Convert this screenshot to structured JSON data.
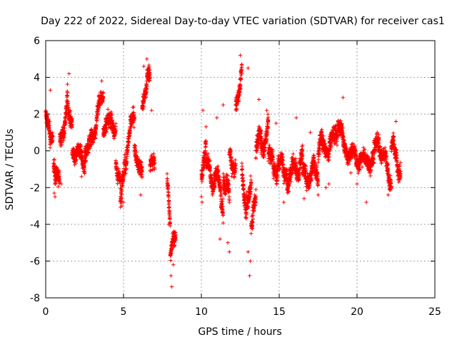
{
  "chart_data": {
    "type": "scatter",
    "title": "Day 222 of 2022, Sidereal Day-to-day VTEC variation (SDTVAR) for receiver cas1",
    "xlabel": "GPS time / hours",
    "ylabel": "SDTVAR / TECUs",
    "xlim": [
      0,
      25
    ],
    "ylim": [
      -8,
      6
    ],
    "xticks": [
      "0",
      "5",
      "10",
      "15",
      "20",
      "25"
    ],
    "yticks": [
      "-8",
      "-6",
      "-4",
      "-2",
      "0",
      "2",
      "4",
      "6"
    ],
    "grid": true,
    "marker": "+",
    "color": "#ff0000",
    "series": [
      {
        "name": "SDTVAR",
        "segments": [
          {
            "t0": 0.0,
            "t1": 0.45,
            "c0": 1.5,
            "c1": 1.0,
            "amp": 0.9
          },
          {
            "t0": 0.5,
            "t1": 0.9,
            "c0": -0.5,
            "c1": -2.0,
            "amp": 0.8
          },
          {
            "t0": 0.9,
            "t1": 1.4,
            "c0": 0.5,
            "c1": 2.5,
            "amp": 1.0
          },
          {
            "t0": 1.4,
            "t1": 1.7,
            "c0": 3.0,
            "c1": 1.5,
            "amp": 1.0
          },
          {
            "t0": 1.7,
            "t1": 2.5,
            "c0": 0.0,
            "c1": -0.5,
            "amp": 0.8
          },
          {
            "t0": 2.5,
            "t1": 3.0,
            "c0": 0.0,
            "c1": 0.5,
            "amp": 0.8
          },
          {
            "t0": 3.0,
            "t1": 3.4,
            "c0": 1.0,
            "c1": 2.0,
            "amp": 0.9
          },
          {
            "t0": 3.4,
            "t1": 3.7,
            "c0": 2.8,
            "c1": 3.2,
            "amp": 0.6
          },
          {
            "t0": 3.7,
            "t1": 4.5,
            "c0": 1.5,
            "c1": 1.5,
            "amp": 0.8
          },
          {
            "t0": 4.5,
            "t1": 4.8,
            "c0": -0.5,
            "c1": -1.5,
            "amp": 0.8
          },
          {
            "t0": 4.8,
            "t1": 5.2,
            "c0": -2.0,
            "c1": -1.0,
            "amp": 1.0
          },
          {
            "t0": 5.2,
            "t1": 5.7,
            "c0": 0.5,
            "c1": 1.5,
            "amp": 0.9
          },
          {
            "t0": 5.7,
            "t1": 6.2,
            "c0": 0.5,
            "c1": -1.5,
            "amp": 1.0
          },
          {
            "t0": 6.2,
            "t1": 6.7,
            "c0": 3.0,
            "c1": 4.0,
            "amp": 0.9
          },
          {
            "t0": 6.7,
            "t1": 7.0,
            "c0": -0.5,
            "c1": -1.0,
            "amp": 0.5
          },
          {
            "t0": 7.8,
            "t1": 8.0,
            "c0": -1.5,
            "c1": -4.0,
            "amp": 0.6
          },
          {
            "t0": 8.0,
            "t1": 8.35,
            "c0": -5.5,
            "c1": -5.0,
            "amp": 1.0
          },
          {
            "t0": 10.0,
            "t1": 10.3,
            "c0": -1.0,
            "c1": 0.5,
            "amp": 1.0
          },
          {
            "t0": 10.3,
            "t1": 10.8,
            "c0": -1.0,
            "c1": -1.5,
            "amp": 1.0
          },
          {
            "t0": 10.8,
            "t1": 11.4,
            "c0": -1.0,
            "c1": -3.0,
            "amp": 1.2
          },
          {
            "t0": 11.4,
            "t1": 11.8,
            "c0": -1.0,
            "c1": -3.0,
            "amp": 1.2
          },
          {
            "t0": 11.8,
            "t1": 12.2,
            "c0": 0.0,
            "c1": -1.0,
            "amp": 1.0
          },
          {
            "t0": 12.2,
            "t1": 12.6,
            "c0": 2.5,
            "c1": 4.5,
            "amp": 0.9
          },
          {
            "t0": 12.6,
            "t1": 13.2,
            "c0": -2.0,
            "c1": -2.5,
            "amp": 1.3
          },
          {
            "t0": 13.2,
            "t1": 13.5,
            "c0": -4.0,
            "c1": -3.0,
            "amp": 1.2
          },
          {
            "t0": 13.5,
            "t1": 14.3,
            "c0": 0.0,
            "c1": 1.2,
            "amp": 1.2
          },
          {
            "t0": 14.3,
            "t1": 15.5,
            "c0": -0.5,
            "c1": -1.0,
            "amp": 1.0
          },
          {
            "t0": 15.5,
            "t1": 16.5,
            "c0": -1.5,
            "c1": -0.5,
            "amp": 1.0
          },
          {
            "t0": 16.5,
            "t1": 17.5,
            "c0": -1.5,
            "c1": -1.0,
            "amp": 1.0
          },
          {
            "t0": 17.5,
            "t1": 18.5,
            "c0": 0.0,
            "c1": 0.5,
            "amp": 1.0
          },
          {
            "t0": 18.5,
            "t1": 19.2,
            "c0": 1.5,
            "c1": 0.5,
            "amp": 1.0
          },
          {
            "t0": 19.2,
            "t1": 20.5,
            "c0": 0.0,
            "c1": -0.5,
            "amp": 0.7
          },
          {
            "t0": 20.5,
            "t1": 21.5,
            "c0": -1.0,
            "c1": 0.5,
            "amp": 0.9
          },
          {
            "t0": 21.5,
            "t1": 22.2,
            "c0": 0.0,
            "c1": -1.5,
            "amp": 0.9
          },
          {
            "t0": 22.2,
            "t1": 22.8,
            "c0": 0.5,
            "c1": -1.0,
            "amp": 0.9
          }
        ],
        "points": [
          [
            12.5,
            5.2
          ],
          [
            13.0,
            4.5
          ],
          [
            6.5,
            5.0
          ],
          [
            6.3,
            4.6
          ],
          [
            1.5,
            4.2
          ],
          [
            3.6,
            3.8
          ],
          [
            8.1,
            -7.4
          ],
          [
            8.05,
            -6.8
          ],
          [
            8.2,
            -6.2
          ],
          [
            13.1,
            -6.8
          ],
          [
            13.15,
            -6.0
          ],
          [
            11.8,
            -5.5
          ],
          [
            11.7,
            -5.0
          ],
          [
            8.2,
            -4.8
          ],
          [
            7.95,
            -3.3
          ],
          [
            7.9,
            -4.0
          ],
          [
            11.2,
            -4.8
          ],
          [
            13.0,
            -5.5
          ],
          [
            0.6,
            -2.5
          ],
          [
            0.55,
            -2.3
          ],
          [
            2.3,
            -1.4
          ],
          [
            0.3,
            3.3
          ],
          [
            1.0,
            -1.8
          ],
          [
            5.0,
            -2.8
          ],
          [
            4.9,
            -3.0
          ],
          [
            6.1,
            -2.4
          ],
          [
            6.8,
            2.2
          ],
          [
            7.0,
            -1.0
          ],
          [
            15.3,
            -2.8
          ],
          [
            22.0,
            -2.4
          ],
          [
            20.6,
            -2.8
          ],
          [
            16.6,
            -2.6
          ],
          [
            17.5,
            -2.4
          ],
          [
            18.2,
            -1.8
          ],
          [
            19.1,
            2.9
          ],
          [
            14.2,
            2.2
          ],
          [
            13.7,
            2.8
          ],
          [
            12.3,
            2.8
          ],
          [
            11.4,
            2.5
          ],
          [
            11.0,
            1.8
          ],
          [
            10.1,
            2.2
          ],
          [
            10.0,
            -2.5
          ],
          [
            10.05,
            -2.8
          ],
          [
            18.0,
            -2.0
          ],
          [
            21.3,
            1.0
          ],
          [
            22.5,
            1.6
          ],
          [
            16.1,
            1.8
          ],
          [
            14.8,
            1.5
          ],
          [
            17.0,
            1.0
          ],
          [
            20.0,
            -1.8
          ],
          [
            19.6,
            -1.2
          ]
        ]
      }
    ]
  }
}
